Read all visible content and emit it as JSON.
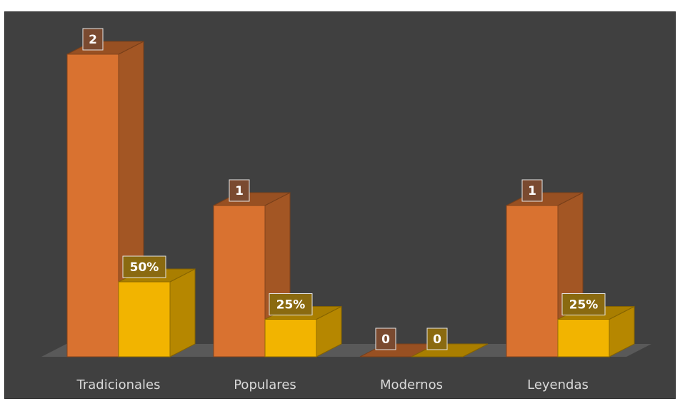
{
  "chart_data": {
    "type": "bar",
    "categories": [
      "Tradicionales",
      "Populares",
      "Modernos",
      "Leyendas"
    ],
    "series": [
      {
        "values": [
          2,
          1,
          0,
          1
        ],
        "labels": [
          "2",
          "1",
          "0",
          "1"
        ],
        "color": "#d97230"
      },
      {
        "values": [
          0.5,
          0.25,
          0,
          0.25
        ],
        "labels": [
          "50%",
          "25%",
          "0",
          "25%"
        ],
        "color": "#f2b400"
      }
    ],
    "style": "3d-clustered-column",
    "background": "#404040",
    "legend": "none",
    "grid": false
  }
}
